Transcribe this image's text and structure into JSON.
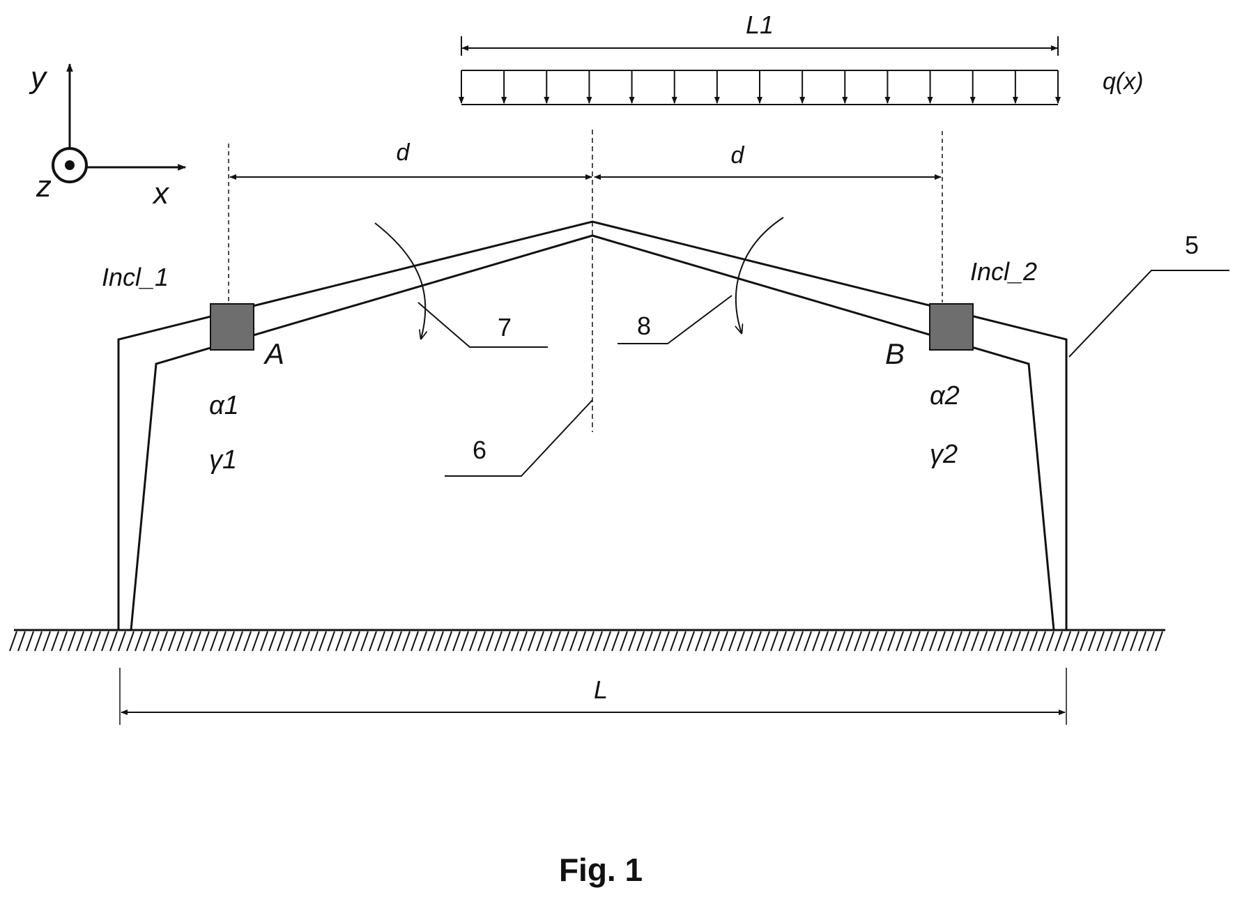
{
  "axes": {
    "y": "y",
    "x": "x",
    "z": "z"
  },
  "load": {
    "span_label": "L1",
    "load_label": "q(x)",
    "arrow_count": 15
  },
  "dims": {
    "d_left": "d",
    "d_right": "d",
    "span": "L"
  },
  "sensors": {
    "left": {
      "name": "Incl_1",
      "point": "A",
      "alpha": "α1",
      "gamma": "γ1"
    },
    "right": {
      "name": "Incl_2",
      "point": "B",
      "alpha": "α2",
      "gamma": "γ2"
    }
  },
  "refs": {
    "r5": "5",
    "r6": "6",
    "r7": "7",
    "r8": "8"
  },
  "caption": "Fig. 1",
  "colors": {
    "sensor": "#6e6e6e",
    "ink": "#111111"
  }
}
